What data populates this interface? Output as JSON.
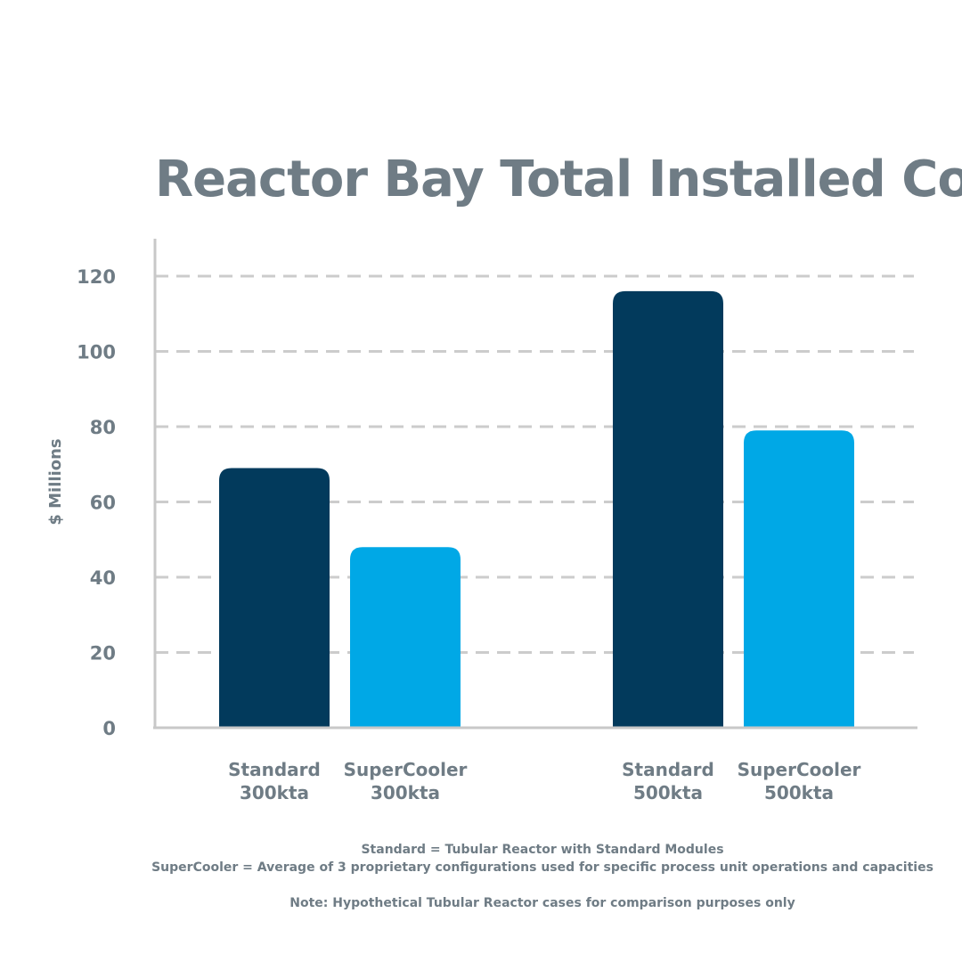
{
  "chart_data": {
    "type": "bar",
    "title": "Reactor Bay Total Installed Cost",
    "ylabel": "$ Millions",
    "xlabel": "",
    "ylim": [
      0,
      120
    ],
    "yticks": [
      0,
      20,
      40,
      60,
      80,
      100,
      120
    ],
    "grid": true,
    "grid_style": "dashed",
    "categories": [
      {
        "line1": "Standard",
        "line2": "300kta"
      },
      {
        "line1": "SuperCooler",
        "line2": "300kta"
      },
      {
        "line1": "Standard",
        "line2": "500kta"
      },
      {
        "line1": "SuperCooler",
        "line2": "500kta"
      }
    ],
    "values": [
      69,
      48,
      116,
      79
    ],
    "bar_colors": [
      "#023a5c",
      "#00a8e6",
      "#023a5c",
      "#00a8e6"
    ],
    "notes": [
      "Standard = Tubular Reactor with Standard Modules",
      "SuperCooler = Average of 3 proprietary configurations used for specific process unit operations and capacities",
      "Note: Hypothetical Tubular Reactor cases for comparison purposes only"
    ],
    "colors": {
      "text": "#6f7c85",
      "axis": "#c8c8c8",
      "grid": "#cccccc"
    }
  }
}
